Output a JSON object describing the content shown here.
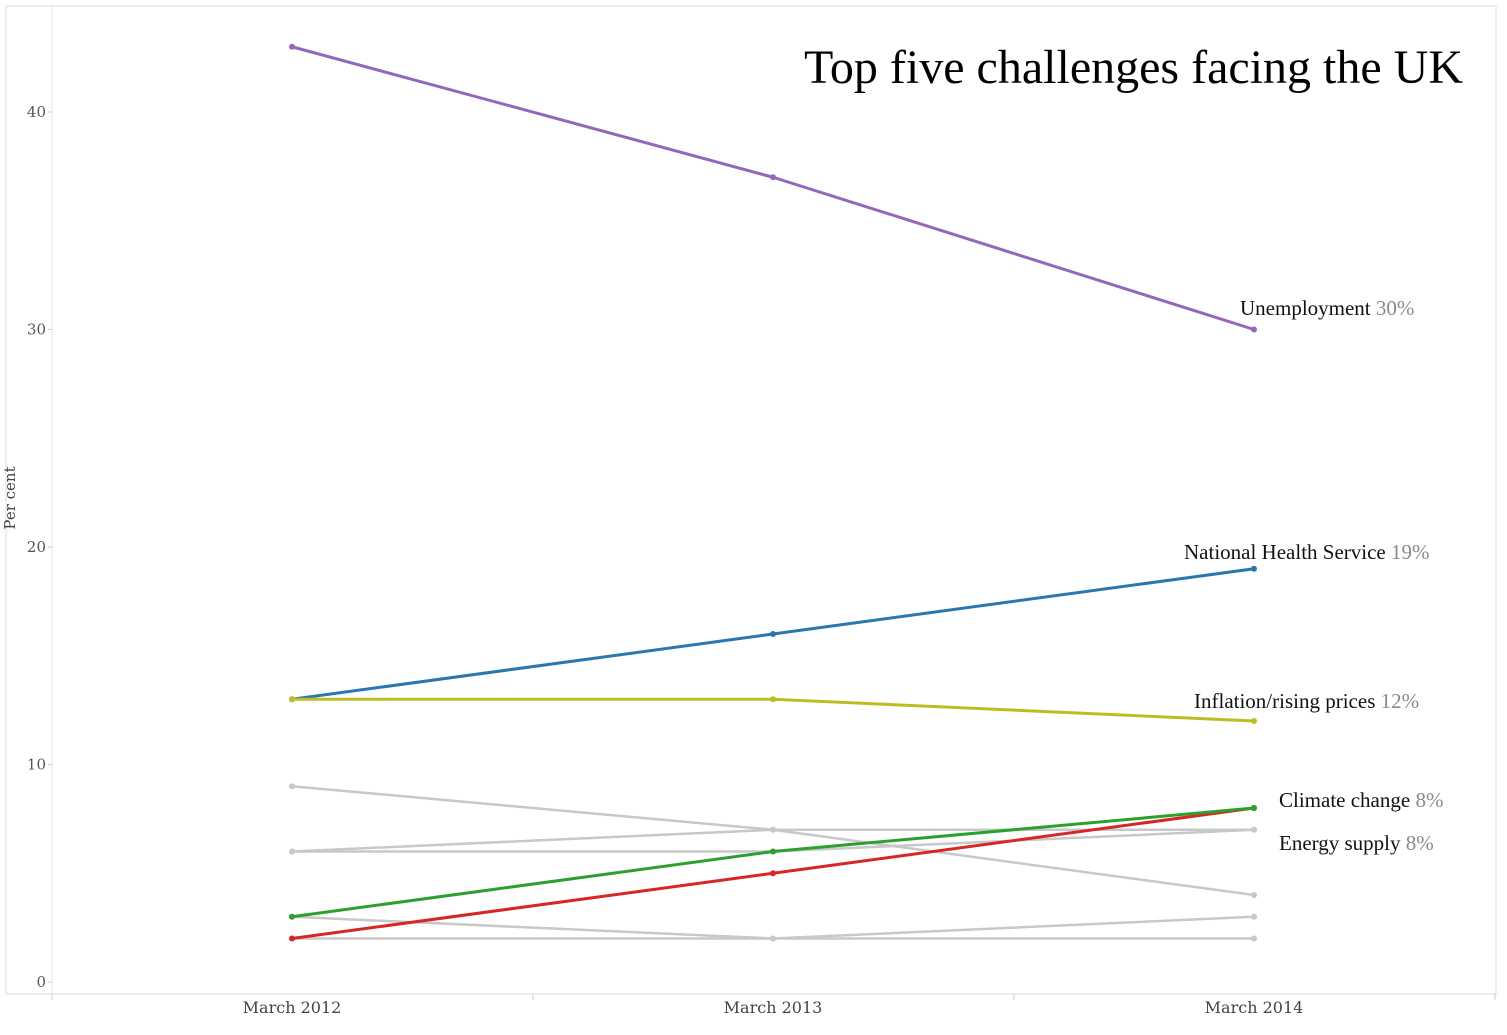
{
  "chart_data": {
    "type": "line",
    "title": "Top five challenges facing the UK",
    "ylabel": "Per cent",
    "xlabel": "",
    "categories": [
      "March 2012",
      "March 2013",
      "March 2014"
    ],
    "ylim": [
      0,
      44
    ],
    "yticks": [
      0,
      10,
      20,
      30,
      40
    ],
    "grid": false,
    "series": [
      {
        "name": "",
        "values": [
          9,
          7,
          4
        ],
        "color": "#c8c8c8",
        "highlight": false
      },
      {
        "name": "",
        "values": [
          6,
          6,
          7
        ],
        "color": "#c8c8c8",
        "highlight": false
      },
      {
        "name": "",
        "values": [
          3,
          2,
          3
        ],
        "color": "#c8c8c8",
        "highlight": false
      },
      {
        "name": "",
        "values": [
          2,
          2,
          2
        ],
        "color": "#c8c8c8",
        "highlight": false
      },
      {
        "name": "",
        "values": [
          6,
          7,
          7
        ],
        "color": "#c8c8c8",
        "highlight": false
      },
      {
        "name": "Unemployment",
        "value_label": "30%",
        "values": [
          43,
          37,
          30
        ],
        "color": "#9467bd",
        "highlight": true
      },
      {
        "name": "National Health Service",
        "value_label": "19%",
        "values": [
          13,
          16,
          19
        ],
        "color": "#2a77b0",
        "highlight": true
      },
      {
        "name": "Inflation/rising prices",
        "value_label": "12%",
        "values": [
          13,
          13,
          12
        ],
        "color": "#bcbd22",
        "highlight": true
      },
      {
        "name": "Energy supply",
        "value_label": "8%",
        "values": [
          2,
          5,
          8
        ],
        "color": "#d62728",
        "highlight": true
      },
      {
        "name": "Climate change",
        "value_label": "8%",
        "values": [
          3,
          6,
          8
        ],
        "color": "#2ca02c",
        "highlight": true
      }
    ]
  }
}
